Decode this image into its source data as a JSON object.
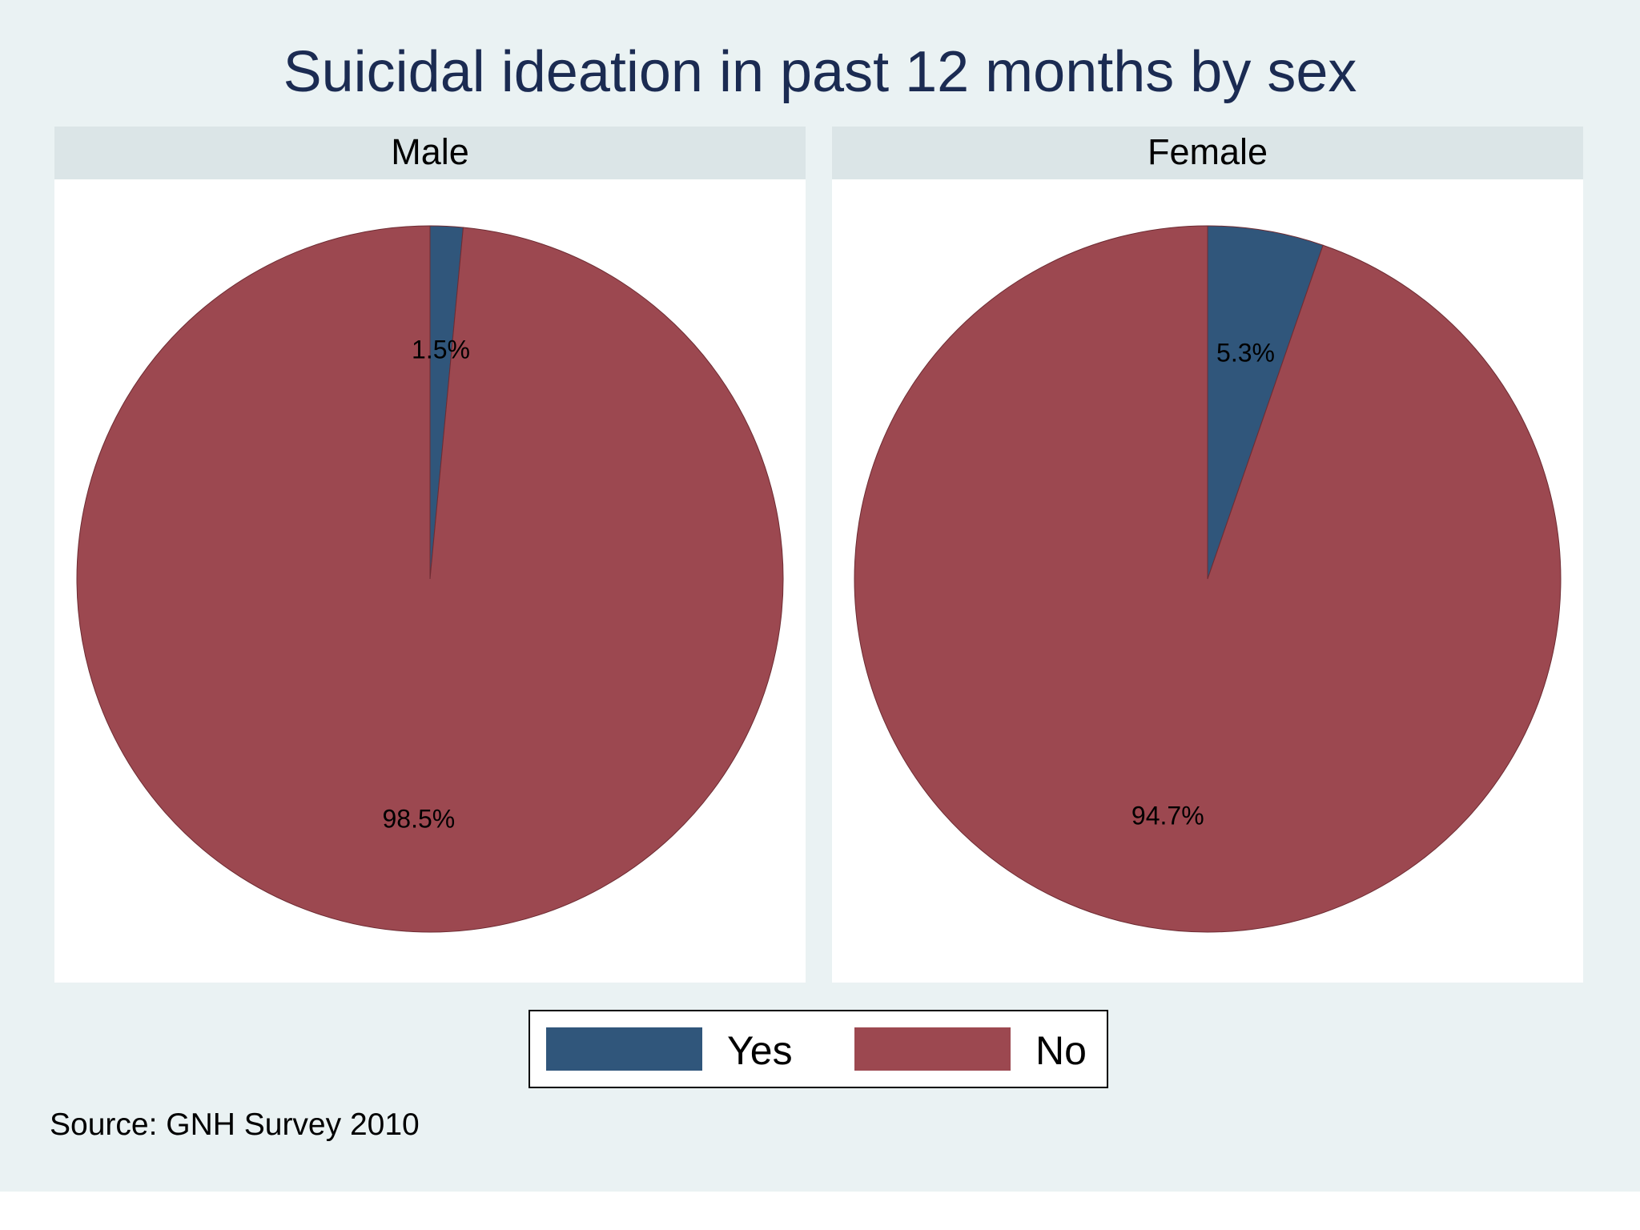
{
  "chart_data": {
    "type": "pie",
    "title": "Suicidal ideation in past 12 months by sex",
    "legend_position": "bottom",
    "categories": [
      "Yes",
      "No"
    ],
    "colors": {
      "Yes": "#30567b",
      "No": "#9c4850"
    },
    "panels": [
      {
        "name": "Male",
        "slices": [
          {
            "label": "Yes",
            "value": 1.5,
            "display": "1.5%"
          },
          {
            "label": "No",
            "value": 98.5,
            "display": "98.5%"
          }
        ]
      },
      {
        "name": "Female",
        "slices": [
          {
            "label": "Yes",
            "value": 5.3,
            "display": "5.3%"
          },
          {
            "label": "No",
            "value": 94.7,
            "display": "94.7%"
          }
        ]
      }
    ],
    "note": "Source: GNH Survey 2010"
  }
}
